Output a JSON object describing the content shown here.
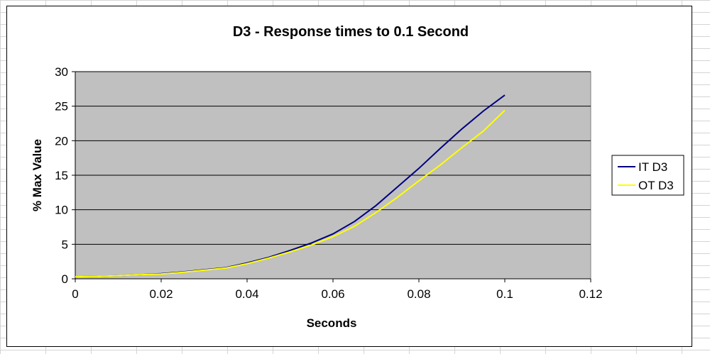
{
  "chart_data": {
    "type": "line",
    "title": "D3 - Response times to 0.1 Second",
    "xlabel": "Seconds",
    "ylabel": "% Max Value",
    "xlim": [
      0,
      0.12
    ],
    "ylim": [
      0,
      30
    ],
    "x_ticks": [
      "0",
      "0.02",
      "0.04",
      "0.06",
      "0.08",
      "0.1",
      "0.12"
    ],
    "y_ticks": [
      "0",
      "5",
      "10",
      "15",
      "20",
      "25",
      "30"
    ],
    "x_tick_values": [
      0,
      0.02,
      0.04,
      0.06,
      0.08,
      0.1,
      0.12
    ],
    "y_tick_values": [
      0,
      5,
      10,
      15,
      20,
      25,
      30
    ],
    "grid": "horizontal",
    "plot_background": "#c0c0c0",
    "legend_position": "right",
    "series": [
      {
        "name": "IT D3",
        "color": "#000080",
        "x": [
          0,
          0.005,
          0.01,
          0.015,
          0.02,
          0.025,
          0.03,
          0.035,
          0.04,
          0.045,
          0.05,
          0.055,
          0.06,
          0.065,
          0.07,
          0.075,
          0.08,
          0.085,
          0.09,
          0.095,
          0.1
        ],
        "y": [
          0.3,
          0.35,
          0.45,
          0.6,
          0.75,
          1.0,
          1.3,
          1.6,
          2.3,
          3.1,
          4.1,
          5.2,
          6.5,
          8.3,
          10.6,
          13.3,
          16.0,
          18.9,
          21.7,
          24.3,
          26.6
        ]
      },
      {
        "name": "OT D3",
        "color": "#ffff00",
        "x": [
          0,
          0.005,
          0.01,
          0.015,
          0.02,
          0.025,
          0.03,
          0.035,
          0.04,
          0.045,
          0.05,
          0.055,
          0.06,
          0.065,
          0.07,
          0.075,
          0.08,
          0.085,
          0.09,
          0.095,
          0.1
        ],
        "y": [
          0.3,
          0.35,
          0.45,
          0.6,
          0.7,
          0.95,
          1.25,
          1.55,
          2.2,
          3.0,
          3.9,
          4.9,
          6.1,
          7.6,
          9.6,
          11.8,
          14.2,
          16.5,
          19.0,
          21.4,
          24.4
        ]
      }
    ]
  }
}
